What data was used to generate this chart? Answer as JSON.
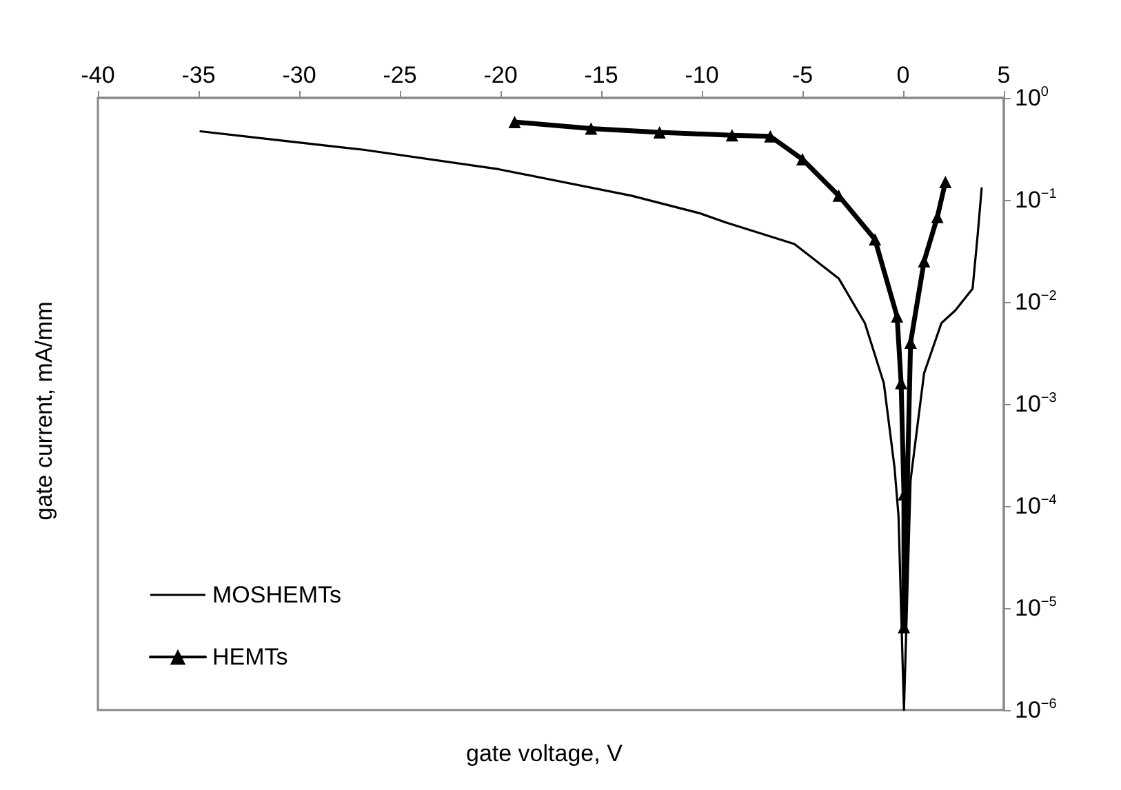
{
  "chart_data": {
    "type": "line",
    "xlabel": "gate voltage, V",
    "ylabel": "gate current, mA/mm",
    "log": "y",
    "grid": false,
    "legend": "bottom left",
    "xlim": [
      -40,
      5
    ],
    "xticks": [
      -40,
      -35,
      -30,
      -25,
      -20,
      -15,
      -10,
      -5,
      0,
      5
    ],
    "ylim": [
      1e-06,
      1
    ],
    "yticks": [
      {
        "value": 1,
        "label": "10$^{0}$"
      },
      {
        "value": 0.1,
        "label": "10$^{−1}$"
      },
      {
        "value": 0.01,
        "label": "10$^{−2}$"
      },
      {
        "value": 0.001,
        "label": "10$^{−3}$"
      },
      {
        "value": 0.0001,
        "label": "10$^{−4}$"
      },
      {
        "value": 1e-05,
        "label": "10$^{−5}$"
      },
      {
        "value": 1e-06,
        "label": "10$^{−6}$"
      }
    ],
    "series": [
      {
        "name": "MOSHEMTs",
        "color": "#000000",
        "marker": "none",
        "x": [
          -34.9,
          -30.8,
          -26.8,
          -20.1,
          -13.5,
          -10.1,
          -8.8,
          -5.4,
          -3.2,
          -1.9,
          -0.96,
          -0.43,
          -0.23,
          0.04,
          0.37,
          1.04,
          1.9,
          2.6,
          3.45,
          3.7,
          3.9
        ],
        "values": [
          0.47,
          0.38,
          0.31,
          0.2,
          0.11,
          0.074,
          0.06,
          0.037,
          0.017,
          0.0062,
          0.0016,
          0.00024,
          8e-05,
          1e-06,
          0.00018,
          0.002,
          0.0062,
          0.0083,
          0.0135,
          0.045,
          0.13
        ]
      },
      {
        "name": "HEMTs",
        "color": "#000000",
        "marker": "triangle",
        "x": [
          -19.3,
          -15.5,
          -12.1,
          -8.5,
          -6.6,
          -5.0,
          -3.2,
          -1.4,
          -0.3,
          -0.1,
          0.04,
          0.04,
          0.37,
          1.04,
          1.7,
          2.1
        ],
        "values": [
          0.58,
          0.5,
          0.46,
          0.43,
          0.42,
          0.25,
          0.11,
          0.041,
          0.0072,
          0.0016,
          0.00013,
          6.5e-06,
          0.004,
          0.025,
          0.068,
          0.15
        ]
      }
    ]
  }
}
